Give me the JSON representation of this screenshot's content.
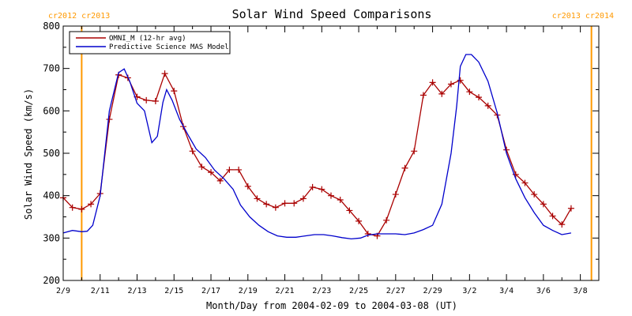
{
  "chart_data": {
    "type": "line",
    "title": "Solar Wind Speed Comparisons",
    "xlabel": "Month/Day from 2004-02-09 to 2004-03-08 (UT)",
    "ylabel": "Solar Wind Speed (km/s)",
    "xlim": [
      0,
      29
    ],
    "ylim": [
      200,
      800
    ],
    "x_ticks": [
      {
        "day": 0,
        "label": "2/9"
      },
      {
        "day": 2,
        "label": "2/11"
      },
      {
        "day": 4,
        "label": "2/13"
      },
      {
        "day": 6,
        "label": "2/15"
      },
      {
        "day": 8,
        "label": "2/17"
      },
      {
        "day": 10,
        "label": "2/19"
      },
      {
        "day": 12,
        "label": "2/21"
      },
      {
        "day": 14,
        "label": "2/23"
      },
      {
        "day": 16,
        "label": "2/25"
      },
      {
        "day": 18,
        "label": "2/27"
      },
      {
        "day": 20,
        "label": "2/29"
      },
      {
        "day": 22,
        "label": "3/2"
      },
      {
        "day": 24,
        "label": "3/4"
      },
      {
        "day": 26,
        "label": "3/6"
      },
      {
        "day": 28,
        "label": "3/8"
      }
    ],
    "y_ticks": [
      200,
      300,
      400,
      500,
      600,
      700,
      800
    ],
    "legend": {
      "position": "top-left"
    },
    "carrington_markers": [
      {
        "day": 1.0,
        "label": "cr2012 cr2013",
        "color": "#ff9900"
      },
      {
        "day": 28.6,
        "label": "cr2013 cr2014",
        "color": "#ff9900"
      }
    ],
    "series": [
      {
        "name": "OMNI_M (12-hr avg)",
        "color": "#aa0000",
        "marker": "plus",
        "points": [
          [
            0.0,
            395
          ],
          [
            0.5,
            372
          ],
          [
            1.0,
            368
          ],
          [
            1.5,
            380
          ],
          [
            2.0,
            405
          ],
          [
            2.5,
            580
          ],
          [
            3.0,
            685
          ],
          [
            3.5,
            678
          ],
          [
            4.0,
            633
          ],
          [
            4.5,
            625
          ],
          [
            5.0,
            623
          ],
          [
            5.5,
            688
          ],
          [
            6.0,
            647
          ],
          [
            6.5,
            563
          ],
          [
            7.0,
            505
          ],
          [
            7.5,
            468
          ],
          [
            8.0,
            455
          ],
          [
            8.5,
            435
          ],
          [
            9.0,
            461
          ],
          [
            9.5,
            461
          ],
          [
            10.0,
            422
          ],
          [
            10.5,
            393
          ],
          [
            11.0,
            380
          ],
          [
            11.5,
            372
          ],
          [
            12.0,
            382
          ],
          [
            12.5,
            382
          ],
          [
            13.0,
            393
          ],
          [
            13.5,
            420
          ],
          [
            14.0,
            415
          ],
          [
            14.5,
            400
          ],
          [
            15.0,
            390
          ],
          [
            15.5,
            365
          ],
          [
            16.0,
            340
          ],
          [
            16.5,
            310
          ],
          [
            17.0,
            305
          ],
          [
            17.5,
            342
          ],
          [
            18.0,
            403
          ],
          [
            18.5,
            465
          ],
          [
            19.0,
            505
          ],
          [
            19.5,
            637
          ],
          [
            20.0,
            667
          ],
          [
            20.5,
            640
          ],
          [
            21.0,
            663
          ],
          [
            21.5,
            672
          ],
          [
            22.0,
            645
          ],
          [
            22.5,
            632
          ],
          [
            23.0,
            612
          ],
          [
            23.5,
            590
          ],
          [
            24.0,
            508
          ],
          [
            24.5,
            450
          ],
          [
            25.0,
            430
          ],
          [
            25.5,
            403
          ],
          [
            26.0,
            380
          ],
          [
            26.5,
            352
          ],
          [
            27.0,
            332
          ],
          [
            27.5,
            370
          ]
        ]
      },
      {
        "name": "Predictive Science MAS Model",
        "color": "#0000cc",
        "marker": "none",
        "points": [
          [
            0.0,
            312
          ],
          [
            0.5,
            318
          ],
          [
            1.0,
            315
          ],
          [
            1.3,
            316
          ],
          [
            1.6,
            330
          ],
          [
            2.0,
            400
          ],
          [
            2.5,
            600
          ],
          [
            3.0,
            690
          ],
          [
            3.3,
            699
          ],
          [
            3.6,
            670
          ],
          [
            4.0,
            618
          ],
          [
            4.4,
            600
          ],
          [
            4.8,
            525
          ],
          [
            5.1,
            540
          ],
          [
            5.4,
            620
          ],
          [
            5.6,
            650
          ],
          [
            5.9,
            625
          ],
          [
            6.3,
            580
          ],
          [
            6.8,
            540
          ],
          [
            7.2,
            510
          ],
          [
            7.7,
            490
          ],
          [
            8.2,
            460
          ],
          [
            8.7,
            440
          ],
          [
            9.2,
            415
          ],
          [
            9.6,
            378
          ],
          [
            10.1,
            350
          ],
          [
            10.6,
            330
          ],
          [
            11.1,
            315
          ],
          [
            11.6,
            305
          ],
          [
            12.1,
            302
          ],
          [
            12.6,
            302
          ],
          [
            13.1,
            305
          ],
          [
            13.6,
            308
          ],
          [
            14.1,
            308
          ],
          [
            14.6,
            305
          ],
          [
            15.1,
            301
          ],
          [
            15.6,
            298
          ],
          [
            16.1,
            300
          ],
          [
            16.5,
            307
          ],
          [
            17.0,
            310
          ],
          [
            17.5,
            310
          ],
          [
            18.0,
            310
          ],
          [
            18.5,
            308
          ],
          [
            19.0,
            312
          ],
          [
            19.5,
            320
          ],
          [
            20.0,
            330
          ],
          [
            20.5,
            380
          ],
          [
            21.0,
            500
          ],
          [
            21.3,
            610
          ],
          [
            21.5,
            705
          ],
          [
            21.8,
            733
          ],
          [
            22.1,
            733
          ],
          [
            22.5,
            715
          ],
          [
            23.0,
            670
          ],
          [
            23.5,
            595
          ],
          [
            24.0,
            500
          ],
          [
            24.5,
            440
          ],
          [
            25.0,
            395
          ],
          [
            25.5,
            360
          ],
          [
            26.0,
            330
          ],
          [
            26.5,
            318
          ],
          [
            27.0,
            308
          ],
          [
            27.5,
            312
          ]
        ]
      }
    ]
  }
}
